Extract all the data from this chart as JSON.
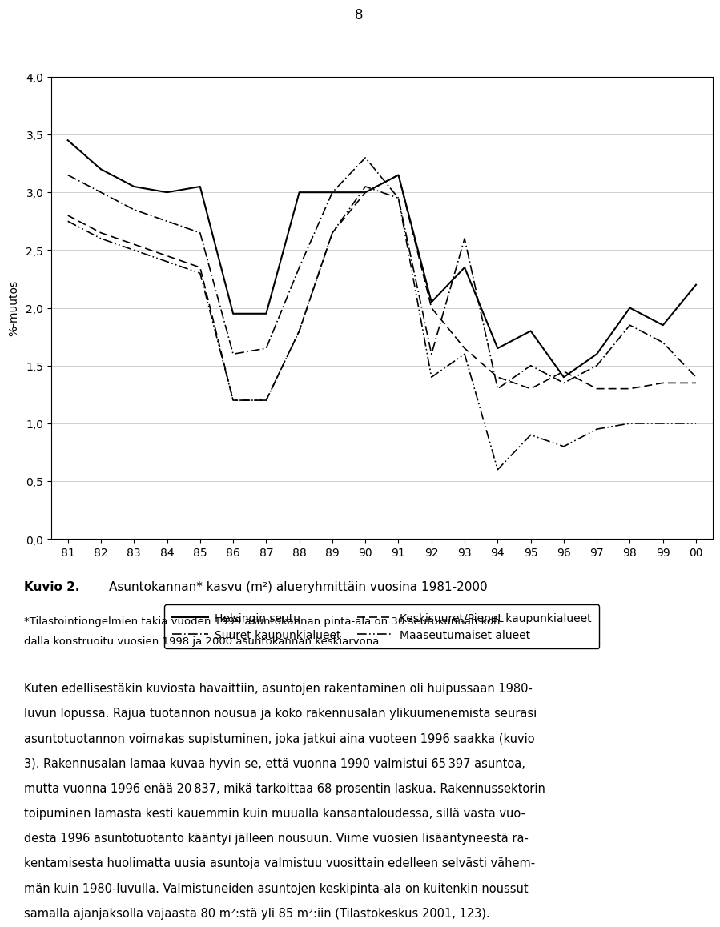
{
  "years_idx": [
    0,
    1,
    2,
    3,
    4,
    5,
    6,
    7,
    8,
    9,
    10,
    11,
    12,
    13,
    14,
    15,
    16,
    17,
    18,
    19
  ],
  "year_labels": [
    "81",
    "82",
    "83",
    "84",
    "85",
    "86",
    "87",
    "88",
    "89",
    "90",
    "91",
    "92",
    "93",
    "94",
    "95",
    "96",
    "97",
    "98",
    "99",
    "00"
  ],
  "helsingin_seutu": [
    3.45,
    3.2,
    3.05,
    3.0,
    3.05,
    1.95,
    1.95,
    3.0,
    3.0,
    3.0,
    3.15,
    2.05,
    2.35,
    1.65,
    1.8,
    1.4,
    1.6,
    2.0,
    1.85,
    2.2
  ],
  "suuret_kaupunkialueet": [
    3.15,
    3.0,
    2.85,
    2.75,
    2.65,
    1.6,
    1.65,
    2.35,
    3.0,
    3.3,
    2.95,
    1.6,
    2.6,
    1.3,
    1.5,
    1.35,
    1.5,
    1.85,
    1.7,
    1.4
  ],
  "keskisuuret_pienet": [
    2.8,
    2.65,
    2.55,
    2.45,
    2.35,
    1.2,
    1.2,
    1.8,
    2.65,
    3.0,
    3.15,
    2.0,
    1.65,
    1.4,
    1.3,
    1.45,
    1.3,
    1.3,
    1.35,
    1.35
  ],
  "maaseutumaiset": [
    2.75,
    2.6,
    2.5,
    2.4,
    2.3,
    1.2,
    1.2,
    1.8,
    2.65,
    3.05,
    2.95,
    1.4,
    1.6,
    0.6,
    0.9,
    0.8,
    0.95,
    1.0,
    1.0,
    1.0
  ],
  "ylim": [
    0.0,
    4.0
  ],
  "yticks": [
    0.0,
    0.5,
    1.0,
    1.5,
    2.0,
    2.5,
    3.0,
    3.5,
    4.0
  ],
  "ylabel": "%-muutos",
  "page_number": "8",
  "caption_bold": "Kuvio 2.",
  "caption_title": "Asuntokannan* kasvu (m²) alueryhmittäin vuosina 1981-2000",
  "caption_footnote": "*Tilastointiongelmien takia vuoden 1999 asuntokannan pinta-ala on 30 seutukunnan kohdalla konstruoitu vuosien 1998 ja 2000 asuntokannan keskiarvona.",
  "body_text_lines": [
    "Kuten edellisestäkin kuviosta havaittiin, asuntojen rakentaminen oli huipussaan 1980-",
    "luvun lopussa. Rajua tuotannon nousua ja koko rakennusalan ylikuumenemista seurasi",
    "asuntotuotannon voimakas supistuminen, joka jatkui aina vuoteen 1996 saakka (kuvio",
    "3). Rakennusalan lamaa kuvaa hyvin se, että vuonna 1990 valmistui 65 397 asuntoa,",
    "mutta vuonna 1996 enää 20 837, mikä tarkoittaa 68 prosentin laskua. Rakennussektorin",
    "toipuminen lamasta kesti kauemmin kuin muualla kansantaloudessa, sillä vasta vuo-",
    "desta 1996 asuntotuotanto kääntyi jälleen nousuun. Viime vuosien lisääntyneestä ra-",
    "kentamisesta huolimatta uusia asuntoja valmistuu vuosittain edelleen selvästi vähem-",
    "män kuin 1980-luvulla. Valmistuneiden asuntojen keskipinta-ala on kuitenkin noussut",
    "samalla ajanjaksolla vajaasta 80 m²:stä yli 85 m²:iin (Tilastokeskus 2001, 123)."
  ],
  "background_color": "#ffffff"
}
